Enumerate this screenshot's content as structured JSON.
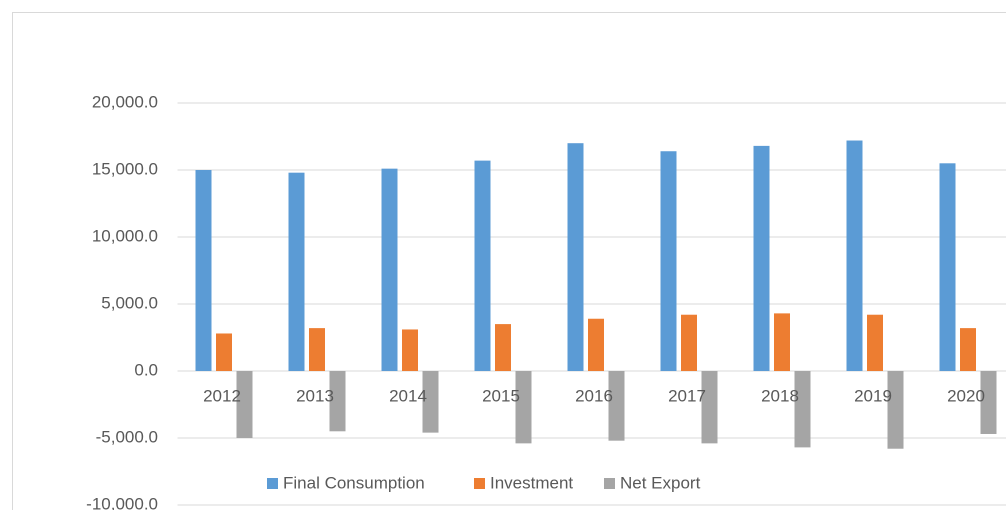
{
  "chart_data": {
    "type": "bar",
    "categories": [
      "2012",
      "2013",
      "2014",
      "2015",
      "2016",
      "2017",
      "2018",
      "2019",
      "2020"
    ],
    "series": [
      {
        "name": "Final Consumption",
        "color": "#5b9bd5",
        "values": [
          15000,
          14800,
          15100,
          15700,
          17000,
          16400,
          16800,
          17200,
          15500
        ]
      },
      {
        "name": "Investment",
        "color": "#ed7d31",
        "values": [
          2800,
          3200,
          3100,
          3500,
          3900,
          4200,
          4300,
          4200,
          3200
        ]
      },
      {
        "name": "Net Export",
        "color": "#a5a5a5",
        "values": [
          -5000,
          -4500,
          -4600,
          -5400,
          -5200,
          -5400,
          -5700,
          -5800,
          -4700
        ]
      }
    ],
    "ylim": [
      -10000,
      20000
    ],
    "yticks": [
      {
        "value": -10000,
        "label": "-10,000.0"
      },
      {
        "value": -5000,
        "label": "-5,000.0"
      },
      {
        "value": 0,
        "label": "0.0"
      },
      {
        "value": 5000,
        "label": "5,000.0"
      },
      {
        "value": 10000,
        "label": "10,000.0"
      },
      {
        "value": 15000,
        "label": "15,000.0"
      },
      {
        "value": 20000,
        "label": "20,000.0"
      }
    ],
    "grid": true,
    "legend": "bottom"
  }
}
